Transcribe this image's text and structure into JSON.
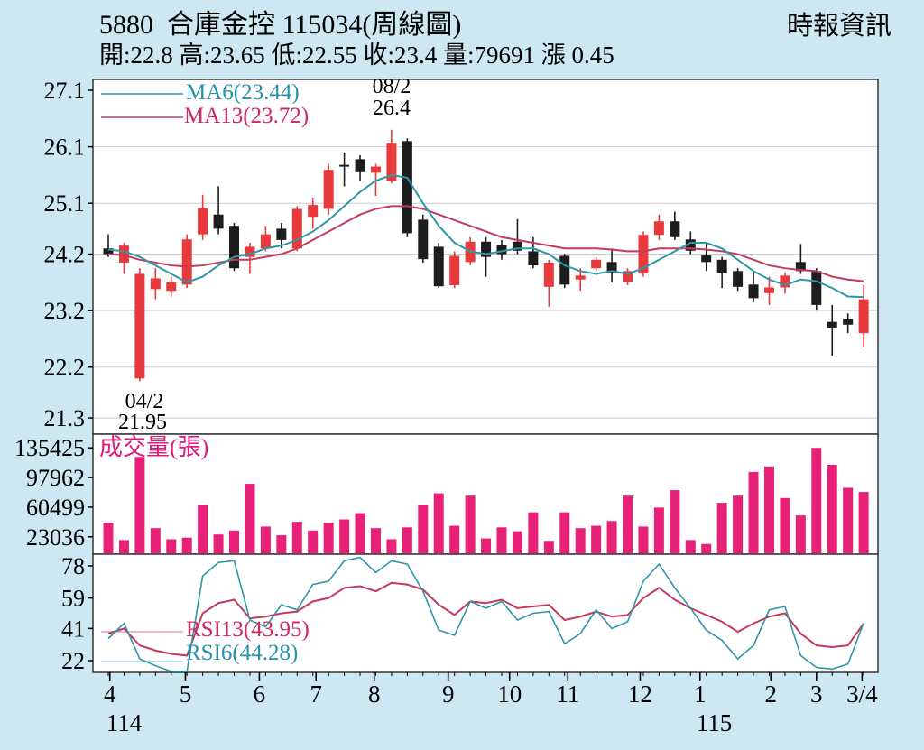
{
  "header": {
    "title": "5880  合庫金控 115034(周線圖)",
    "source": "時報資訊",
    "ohlc_line": "開:22.8 高:23.65 低:22.55 收:23.4 量:79691 漲 0.45"
  },
  "legend": {
    "ma6": "MA6(23.44)",
    "ma13": "MA13(23.72)",
    "volume_label": "成交量(張)",
    "rsi13": "RSI13(43.95)",
    "rsi6": "RSI6(44.28)"
  },
  "annotations": {
    "high_date": "08/2",
    "high_value": "26.4",
    "low_date": "04/2",
    "low_value": "21.95"
  },
  "colors": {
    "background": "#cde7f3",
    "pane": "#ffffff",
    "frame": "#333333",
    "grid": "#cccccc",
    "up": "#e83a3d",
    "down": "#1d1d1d",
    "volume": "#e72177",
    "volume_text": "#e0187a",
    "ma6": "#2f96a8",
    "ma13": "#c43a5a",
    "ma6_text": "#2792ad",
    "ma13_text": "#d0275f"
  },
  "chart_data": {
    "type": "candlestick",
    "panes": [
      "price",
      "volume",
      "rsi"
    ],
    "weeks": 49,
    "candle_format": "open,high,low,close",
    "price_axis_ticks": [
      27.1,
      26.1,
      25.1,
      24.2,
      23.2,
      22.2,
      21.3
    ],
    "volume_axis_ticks": [
      135425,
      97962,
      60499,
      23036
    ],
    "rsi_axis_ticks": [
      78,
      59,
      41,
      22
    ],
    "x_months": [
      {
        "label": "4",
        "pos": 0.1
      },
      {
        "label": "5",
        "pos": 4.9
      },
      {
        "label": "6",
        "pos": 9.6
      },
      {
        "label": "7",
        "pos": 13.2
      },
      {
        "label": "8",
        "pos": 16.9
      },
      {
        "label": "9",
        "pos": 21.6
      },
      {
        "label": "10",
        "pos": 25.5
      },
      {
        "label": "11",
        "pos": 29.2
      },
      {
        "label": "12",
        "pos": 33.8
      },
      {
        "label": "1",
        "pos": 37.6
      },
      {
        "label": "2",
        "pos": 42.1
      },
      {
        "label": "3",
        "pos": 45.0
      },
      {
        "label": "3/4",
        "pos": 47.9
      }
    ],
    "x_era_labels": [
      {
        "label": "114",
        "pos": 0.1
      },
      {
        "label": "115",
        "pos": 37.6
      }
    ],
    "candles": [
      [
        24.3,
        24.55,
        24.15,
        24.2
      ],
      [
        24.05,
        24.4,
        23.85,
        24.35
      ],
      [
        22.0,
        23.95,
        21.95,
        23.85
      ],
      [
        23.58,
        23.95,
        23.4,
        23.77
      ],
      [
        23.55,
        23.8,
        23.45,
        23.7
      ],
      [
        23.66,
        24.55,
        23.6,
        24.46
      ],
      [
        24.55,
        25.25,
        24.45,
        25.02
      ],
      [
        24.9,
        25.4,
        24.55,
        24.65
      ],
      [
        24.7,
        24.75,
        23.9,
        23.95
      ],
      [
        24.15,
        24.4,
        23.85,
        24.33
      ],
      [
        24.3,
        24.7,
        24.25,
        24.55
      ],
      [
        24.65,
        24.75,
        24.3,
        24.45
      ],
      [
        24.3,
        25.05,
        24.25,
        25.0
      ],
      [
        24.86,
        25.2,
        24.65,
        25.07
      ],
      [
        25.0,
        25.8,
        24.9,
        25.69
      ],
      [
        25.78,
        26.0,
        25.4,
        25.75
      ],
      [
        25.88,
        25.95,
        25.5,
        25.65
      ],
      [
        25.64,
        25.8,
        25.23,
        25.75
      ],
      [
        25.5,
        26.4,
        25.45,
        26.17
      ],
      [
        26.2,
        26.25,
        24.5,
        24.57
      ],
      [
        24.81,
        24.9,
        24.05,
        24.11
      ],
      [
        24.33,
        24.4,
        23.6,
        23.63
      ],
      [
        23.65,
        24.25,
        23.6,
        24.17
      ],
      [
        24.06,
        24.5,
        24.0,
        24.42
      ],
      [
        24.42,
        24.5,
        23.8,
        24.15
      ],
      [
        24.36,
        24.45,
        24.1,
        24.2
      ],
      [
        24.42,
        24.82,
        24.2,
        24.26
      ],
      [
        24.25,
        24.5,
        23.95,
        24.0
      ],
      [
        23.62,
        24.1,
        23.27,
        24.05
      ],
      [
        24.17,
        24.2,
        23.6,
        23.66
      ],
      [
        23.75,
        23.95,
        23.55,
        23.82
      ],
      [
        23.95,
        24.15,
        23.9,
        24.1
      ],
      [
        24.06,
        24.3,
        23.7,
        23.87
      ],
      [
        23.71,
        23.95,
        23.65,
        23.9
      ],
      [
        23.86,
        24.6,
        23.8,
        24.54
      ],
      [
        24.54,
        24.9,
        24.45,
        24.78
      ],
      [
        24.78,
        24.95,
        24.45,
        24.5
      ],
      [
        24.46,
        24.6,
        24.2,
        24.26
      ],
      [
        24.18,
        24.38,
        23.9,
        24.06
      ],
      [
        24.1,
        24.15,
        23.6,
        23.87
      ],
      [
        23.9,
        23.95,
        23.55,
        23.62
      ],
      [
        23.66,
        23.9,
        23.35,
        23.42
      ],
      [
        23.51,
        23.8,
        23.3,
        23.61
      ],
      [
        23.61,
        23.88,
        23.5,
        23.82
      ],
      [
        24.06,
        24.38,
        23.85,
        23.9
      ],
      [
        23.9,
        23.95,
        23.2,
        23.3
      ],
      [
        23.0,
        23.3,
        22.4,
        22.9
      ],
      [
        23.05,
        23.15,
        22.8,
        22.95
      ],
      [
        22.8,
        23.65,
        22.55,
        23.4
      ]
    ],
    "volumes": [
      41000,
      19000,
      124000,
      34000,
      20000,
      22000,
      63000,
      26000,
      31000,
      90000,
      36000,
      25000,
      42000,
      31000,
      41000,
      45000,
      53000,
      34000,
      20000,
      35000,
      63000,
      78000,
      37000,
      75000,
      21000,
      35000,
      30000,
      54000,
      18000,
      54000,
      34000,
      37000,
      43000,
      75000,
      36000,
      60000,
      82000,
      19000,
      14000,
      66000,
      75000,
      105000,
      112000,
      72000,
      50000,
      135425,
      114000,
      85000,
      79691
    ],
    "ma6": [
      24.28,
      24.25,
      24.15,
      24.0,
      23.85,
      23.7,
      23.8,
      24.0,
      24.15,
      24.2,
      24.3,
      24.35,
      24.45,
      24.6,
      24.8,
      25.05,
      25.3,
      25.5,
      25.6,
      25.55,
      25.1,
      24.7,
      24.4,
      24.25,
      24.2,
      24.25,
      24.3,
      24.3,
      24.2,
      24.0,
      23.9,
      23.85,
      23.9,
      23.85,
      23.95,
      24.1,
      24.25,
      24.4,
      24.4,
      24.3,
      24.1,
      23.9,
      23.75,
      23.65,
      23.75,
      23.72,
      23.6,
      23.45,
      23.44
    ],
    "ma13": [
      24.2,
      24.18,
      24.1,
      24.05,
      24.0,
      23.98,
      24.0,
      24.05,
      24.1,
      24.1,
      24.15,
      24.2,
      24.3,
      24.45,
      24.6,
      24.75,
      24.9,
      25.0,
      25.05,
      25.05,
      25.0,
      24.9,
      24.8,
      24.7,
      24.6,
      24.5,
      24.45,
      24.4,
      24.35,
      24.3,
      24.3,
      24.3,
      24.28,
      24.25,
      24.25,
      24.3,
      24.3,
      24.3,
      24.28,
      24.25,
      24.2,
      24.1,
      24.0,
      23.95,
      23.92,
      23.9,
      23.8,
      23.75,
      23.72
    ],
    "rsi6": [
      35,
      44,
      23,
      19,
      15,
      14,
      72,
      80,
      81,
      46,
      42,
      55,
      52,
      67,
      69,
      81,
      83,
      74,
      81,
      79,
      63,
      40,
      37,
      57,
      53,
      57,
      46,
      50,
      51,
      32,
      38,
      52,
      41,
      45,
      69,
      79,
      65,
      53,
      40,
      34,
      23,
      31,
      52,
      54,
      25,
      18,
      17,
      20,
      44.28
    ],
    "rsi13": [
      38,
      41,
      31,
      28,
      26,
      25,
      50,
      56,
      58,
      47,
      48,
      50,
      51,
      57,
      59,
      65,
      66,
      63,
      68,
      67,
      64,
      55,
      49,
      57,
      56,
      58,
      53,
      54,
      55,
      46,
      48,
      51,
      48,
      49,
      59,
      65,
      58,
      53,
      49,
      45,
      39,
      44,
      48,
      50,
      38,
      31,
      30,
      31,
      43.95
    ]
  }
}
